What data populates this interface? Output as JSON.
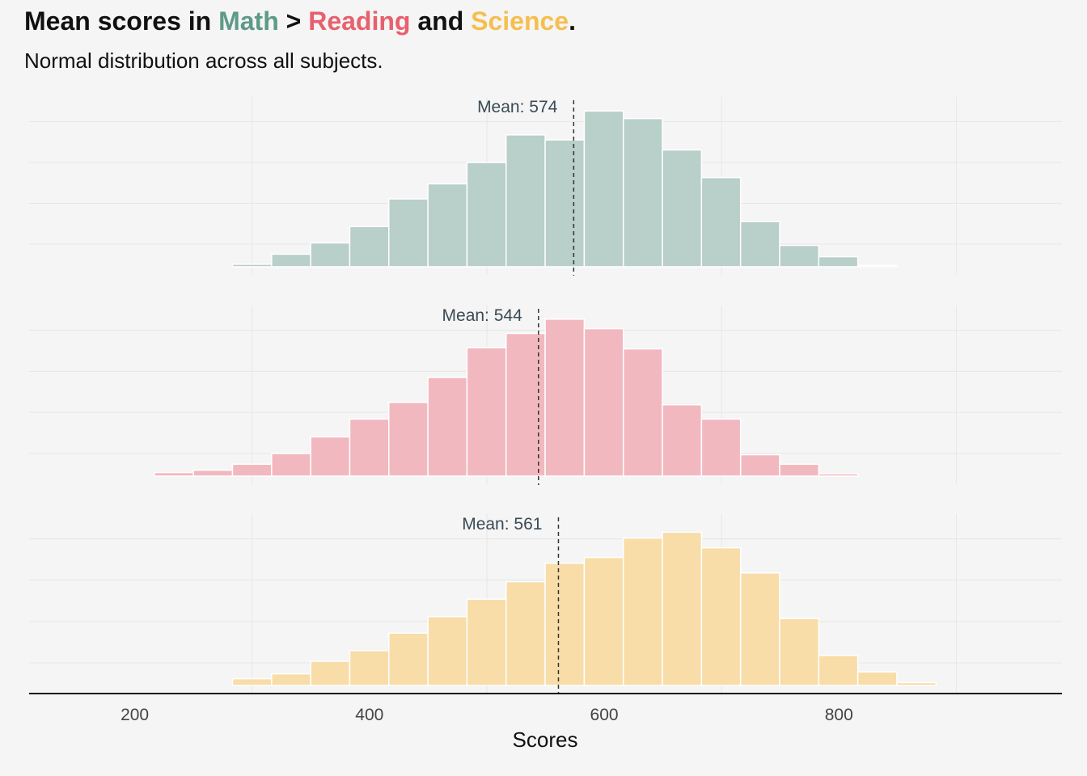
{
  "title": {
    "prefix": "Mean scores in ",
    "math": "Math",
    "gt": " > ",
    "reading": "Reading",
    "and": " and ",
    "science": "Science",
    "end": "."
  },
  "subtitle": "Normal distribution across all subjects.",
  "colors": {
    "math": "#5e9a88",
    "reading": "#e8606e",
    "science": "#f6be4d",
    "math_fill": "#b9cfc9",
    "reading_fill": "#f2b8c0",
    "science_fill": "#f8dda9"
  },
  "chart_data": {
    "type": "histogram",
    "xlabel": "Scores",
    "xlim": [
      110,
      990
    ],
    "x_ticks": [
      200,
      400,
      600,
      800
    ],
    "bin_width": 33.3,
    "grid": true,
    "panels": [
      {
        "name": "Math",
        "mean": 574,
        "mean_label": "Mean: 574",
        "bins_start": 283.3,
        "counts": [
          2,
          10,
          19,
          32,
          54,
          66,
          83,
          105,
          101,
          124,
          118,
          93,
          71,
          36,
          17,
          8,
          1
        ],
        "ymax": 130
      },
      {
        "name": "Reading",
        "mean": 544,
        "mean_label": "Mean: 544",
        "bins_start": 216.7,
        "counts": [
          3,
          5,
          10,
          19,
          33,
          48,
          62,
          83,
          108,
          120,
          132,
          124,
          107,
          60,
          48,
          18,
          10,
          2
        ],
        "ymax": 138
      },
      {
        "name": "Science",
        "mean": 561,
        "mean_label": "Mean: 561",
        "bins_start": 283.3,
        "counts": [
          7,
          12,
          25,
          36,
          54,
          71,
          89,
          107,
          126,
          132,
          152,
          158,
          142,
          116,
          69,
          31,
          14,
          3
        ],
        "ymax": 170
      }
    ]
  }
}
